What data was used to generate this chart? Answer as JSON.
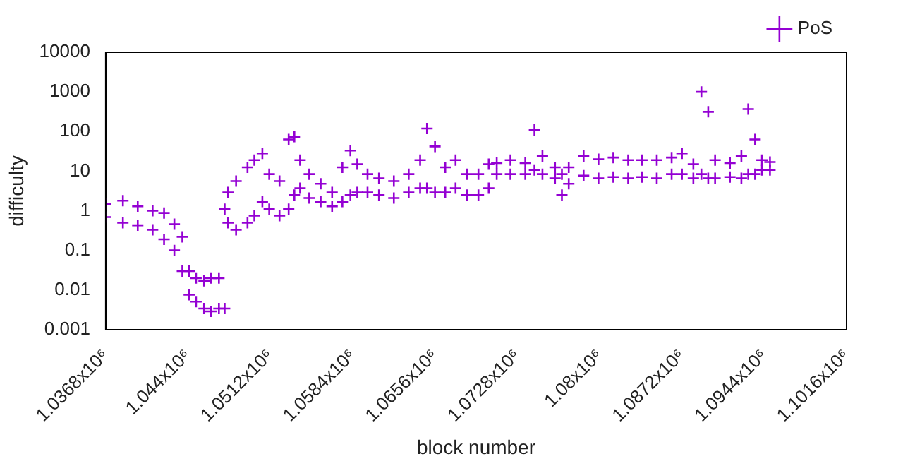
{
  "chart_data": {
    "type": "scatter",
    "xlabel": "block number",
    "ylabel": "difficulty",
    "log": "y",
    "grid": false,
    "legend": "top right",
    "marker": "cross",
    "xlim": [
      1036800,
      1101600
    ],
    "ylim": [
      0.001,
      10000
    ],
    "xticks": [
      {
        "value": 1036800,
        "label": "1.0368x10⁶"
      },
      {
        "value": 1044000,
        "label": "1.044x10⁶"
      },
      {
        "value": 1051200,
        "label": "1.0512x10⁶"
      },
      {
        "value": 1058400,
        "label": "1.0584x10⁶"
      },
      {
        "value": 1065600,
        "label": "1.0656x10⁶"
      },
      {
        "value": 1072800,
        "label": "1.0728x10⁶"
      },
      {
        "value": 1080000,
        "label": "1.08x10⁶"
      },
      {
        "value": 1087200,
        "label": "1.0872x10⁶"
      },
      {
        "value": 1094400,
        "label": "1.0944x10⁶"
      },
      {
        "value": 1101600,
        "label": "1.1016x10⁶"
      }
    ],
    "yticks": [
      0.001,
      0.01,
      0.1,
      1,
      10,
      100,
      1000,
      10000
    ],
    "series": [
      {
        "name": "PoS",
        "color": "#9400d3",
        "x": [
          1036800,
          1036800,
          1038300,
          1038300,
          1039600,
          1039600,
          1040900,
          1040900,
          1041900,
          1041900,
          1042800,
          1042800,
          1043500,
          1043500,
          1044100,
          1044100,
          1044700,
          1044700,
          1045400,
          1045400,
          1046000,
          1046000,
          1046700,
          1046700,
          1047200,
          1047200,
          1047500,
          1047500,
          1048200,
          1048200,
          1049200,
          1049200,
          1049800,
          1049800,
          1050500,
          1050500,
          1051100,
          1051100,
          1052000,
          1052000,
          1052800,
          1052800,
          1053300,
          1053300,
          1053800,
          1053800,
          1054600,
          1054600,
          1055600,
          1055600,
          1056600,
          1056600,
          1057500,
          1057500,
          1058200,
          1058200,
          1058800,
          1058800,
          1059700,
          1059700,
          1060700,
          1060700,
          1062000,
          1062000,
          1063300,
          1063300,
          1064300,
          1064300,
          1064900,
          1064900,
          1065600,
          1065600,
          1066500,
          1066500,
          1067400,
          1067400,
          1068400,
          1068400,
          1069400,
          1069400,
          1070300,
          1070300,
          1071000,
          1071000,
          1072200,
          1072200,
          1073500,
          1073500,
          1074300,
          1074300,
          1075000,
          1075000,
          1076100,
          1076100,
          1076700,
          1076700,
          1077300,
          1077300,
          1078600,
          1078600,
          1079900,
          1079900,
          1081200,
          1081200,
          1082500,
          1082500,
          1083700,
          1083700,
          1085000,
          1085000,
          1086300,
          1086300,
          1087200,
          1087200,
          1088200,
          1088200,
          1088900,
          1088900,
          1089500,
          1089500,
          1090100,
          1090100,
          1091400,
          1091400,
          1092400,
          1092400,
          1093000,
          1093000,
          1093600,
          1093600,
          1094200,
          1094200,
          1094900,
          1094900
        ],
        "values": [
          1.5,
          0.69,
          1.8,
          0.5,
          1.3,
          0.43,
          1.0,
          0.33,
          0.88,
          0.19,
          0.46,
          0.1,
          0.22,
          0.03,
          0.03,
          0.0076,
          0.02,
          0.0051,
          0.017,
          0.0034,
          0.02,
          0.0029,
          0.02,
          0.0034,
          1.1,
          0.0034,
          2.9,
          0.5,
          5.6,
          0.33,
          12.5,
          0.5,
          19,
          0.75,
          28,
          1.7,
          8.4,
          1.1,
          5.6,
          0.75,
          63,
          1.1,
          74,
          2.5,
          19,
          3.7,
          8.4,
          2.1,
          4.8,
          1.7,
          2.9,
          1.3,
          12.5,
          1.7,
          33,
          2.5,
          15,
          2.9,
          8.4,
          2.9,
          6.6,
          2.5,
          5.6,
          2.1,
          8.4,
          2.9,
          19,
          3.7,
          119,
          3.7,
          42,
          2.9,
          12.5,
          2.9,
          19,
          3.7,
          8.4,
          2.5,
          8.4,
          2.5,
          15,
          3.7,
          16,
          8.4,
          19,
          8.4,
          16,
          8.4,
          110,
          10.7,
          24,
          8.4,
          12.5,
          6.6,
          8.4,
          2.5,
          12.5,
          4.8,
          24,
          7.7,
          20,
          6.6,
          22,
          7.1,
          19,
          6.6,
          19,
          7.1,
          19,
          6.6,
          22,
          8.4,
          28,
          8.4,
          15,
          6.6,
          1000,
          8.4,
          314,
          6.6,
          19,
          6.6,
          16,
          7.1,
          24,
          6.6,
          368,
          8.4,
          63,
          8.4,
          19,
          10.7,
          17,
          10.7
        ]
      }
    ]
  }
}
